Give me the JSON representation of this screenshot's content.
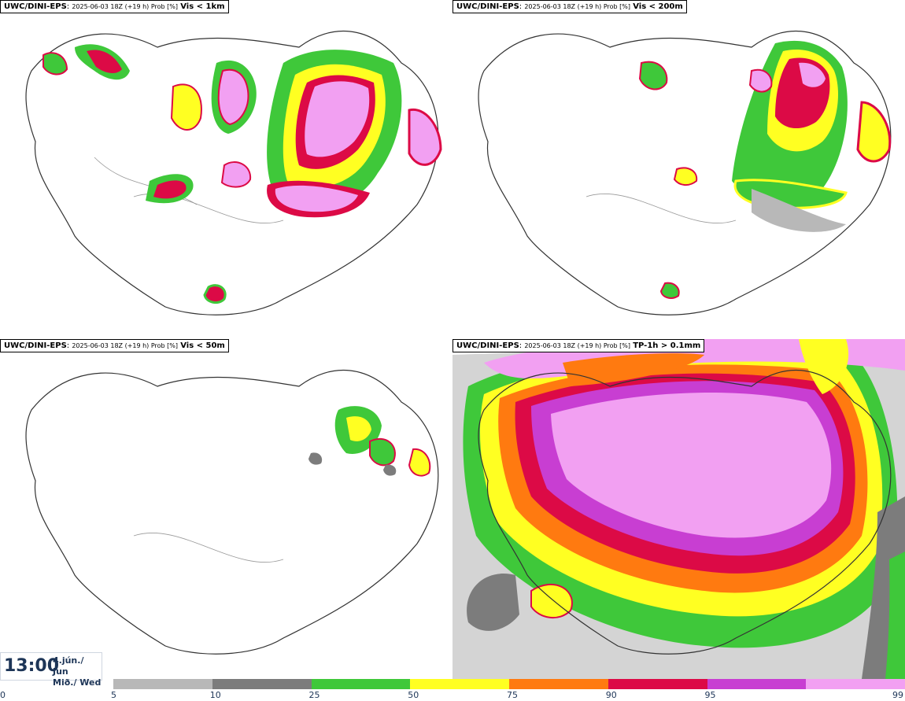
{
  "panels": [
    {
      "id": "vis1km",
      "model": "UWC/DINI-EPS",
      "meta": "2025-06-03 18Z (+19 h) Prob [%]",
      "variable": "Vis < 1km"
    },
    {
      "id": "vis200m",
      "model": "UWC/DINI-EPS",
      "meta": "2025-06-03 18Z (+19 h) Prob [%]",
      "variable": "Vis < 200m"
    },
    {
      "id": "vis50m",
      "model": "UWC/DINI-EPS",
      "meta": "2025-06-03 18Z (+19 h) Prob [%]",
      "variable": "Vis < 50m"
    },
    {
      "id": "tp1h",
      "model": "UWC/DINI-EPS",
      "meta": "2025-06-03 18Z (+19 h) Prob [%]",
      "variable": "TP-1h > 0.1mm"
    }
  ],
  "valid_time": {
    "time": "13:00",
    "date_line1": "4.jún./ Jun",
    "date_line2": "Mið./ Wed"
  },
  "colorbar": {
    "ticks": [
      "0",
      "5",
      "10",
      "25",
      "50",
      "75",
      "90",
      "95",
      "99"
    ],
    "colors": [
      "#b8b8b8",
      "#7c7c7c",
      "#3fc83a",
      "#ffff22",
      "#ff7a10",
      "#dc0a46",
      "#c83ed2",
      "#f2a0f2"
    ]
  }
}
